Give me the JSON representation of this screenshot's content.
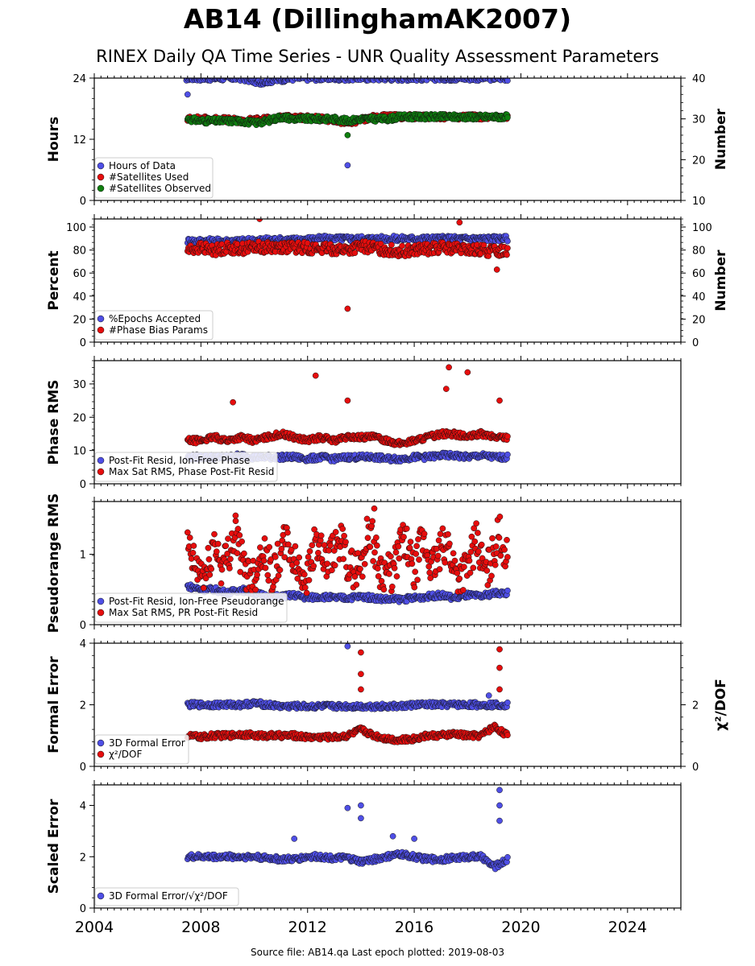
{
  "title": "AB14 (DillinghamAK2007)",
  "subtitle": "RINEX Daily QA Time Series - UNR Quality Assessment Parameters",
  "footer": "Source file: AB14.qa Last epoch plotted: 2019-08-03",
  "colors": {
    "blue": "#4f4fe6",
    "red": "#e60d0d",
    "green": "#0f7f0f",
    "edge": "#111111"
  },
  "chart_data": [
    {
      "type": "scatter",
      "ylabel": "Hours",
      "y2label": "Number",
      "xlim": [
        2004,
        2026
      ],
      "ylim": [
        0,
        24
      ],
      "y2lim": [
        10,
        40
      ],
      "yticks": [
        "0",
        "12",
        "24"
      ],
      "y2ticks": [
        "10",
        "20",
        "30",
        "40"
      ],
      "legend": "lower-left",
      "series": [
        {
          "name": "Hours of Data",
          "color": "blue",
          "axis": "left",
          "x": [
            2007.4,
            2007.6,
            2008.5,
            2009.5,
            2010.2,
            2010.6,
            2011.5,
            2012.8,
            2013.5,
            2014.5,
            2015.5,
            2016.5,
            2017.5,
            2018.5,
            2019.5
          ],
          "y": [
            24,
            24,
            24,
            24,
            23.2,
            23.5,
            24,
            24,
            24,
            24,
            24,
            24,
            24,
            24,
            24
          ],
          "outliers": [
            [
              2007.5,
              20.8
            ],
            [
              2013.5,
              6.9
            ]
          ]
        },
        {
          "name": "#Satellites Used",
          "color": "red",
          "axis": "right",
          "x": [
            2007.5,
            2008.5,
            2009.5,
            2010.5,
            2011.5,
            2012.5,
            2013.5,
            2014.5,
            2015.5,
            2016.5,
            2017.5,
            2018.5,
            2019.5
          ],
          "y": [
            30,
            30,
            29.5,
            30,
            30.5,
            30,
            29,
            30.5,
            30.5,
            30.5,
            30.5,
            30.5,
            30.5
          ]
        },
        {
          "name": "#Satellites Observed",
          "color": "green",
          "axis": "right",
          "x": [
            2007.5,
            2008.0,
            2008.5,
            2009.0,
            2009.5,
            2010.0,
            2010.5,
            2011.0,
            2011.5,
            2012.0,
            2012.5,
            2013.0,
            2013.5,
            2014.0,
            2014.5,
            2015.0,
            2015.5,
            2016.0,
            2016.5,
            2017.0,
            2017.5,
            2018.0,
            2018.5,
            2019.0,
            2019.5
          ],
          "y": [
            30,
            29.5,
            29.5,
            29.5,
            29.5,
            29,
            29.5,
            30.5,
            30,
            30,
            30,
            30,
            29.5,
            30,
            30,
            30,
            30.5,
            30.5,
            30.5,
            30.5,
            30.5,
            30.5,
            30.5,
            30.5,
            30.5
          ],
          "outliers": [
            [
              2013.5,
              26
            ]
          ]
        }
      ]
    },
    {
      "type": "scatter",
      "ylabel": "Percent",
      "y2label": "Number",
      "xlim": [
        2004,
        2026
      ],
      "ylim": [
        0,
        107
      ],
      "y2lim": [
        0,
        107
      ],
      "yticks": [
        "0",
        "20",
        "40",
        "60",
        "80",
        "100"
      ],
      "y2ticks": [
        "0",
        "20",
        "40",
        "60",
        "80",
        "100"
      ],
      "legend": "lower-left",
      "series": [
        {
          "name": "%Epochs Accepted",
          "color": "blue",
          "axis": "left",
          "x": [
            2007.5,
            2008.5,
            2009.5,
            2010.5,
            2011.5,
            2012.5,
            2013.5,
            2014.5,
            2015.5,
            2016.5,
            2017.5,
            2018.5,
            2019.5
          ],
          "y": [
            88,
            88,
            88,
            89,
            89,
            90,
            90,
            90,
            90,
            90,
            90,
            90,
            90
          ]
        },
        {
          "name": "#Phase Bias Params",
          "color": "red",
          "axis": "right",
          "x": [
            2007.5,
            2008.0,
            2008.5,
            2009.0,
            2009.5,
            2010.0,
            2010.5,
            2011.0,
            2011.5,
            2012.0,
            2012.5,
            2013.0,
            2013.5,
            2014.0,
            2014.5,
            2015.0,
            2015.5,
            2016.0,
            2016.5,
            2017.0,
            2017.5,
            2018.0,
            2018.5,
            2019.0,
            2019.5
          ],
          "y": [
            80,
            82,
            80,
            82,
            81,
            83,
            82,
            83,
            82,
            82,
            81,
            81,
            80,
            83,
            82,
            80,
            79,
            80,
            81,
            82,
            81,
            80,
            80,
            79,
            80
          ],
          "outliers": [
            [
              2010.2,
              107
            ],
            [
              2013.5,
              29
            ],
            [
              2017.7,
              104
            ],
            [
              2019.1,
              63
            ]
          ]
        }
      ]
    },
    {
      "type": "scatter",
      "ylabel": "Phase RMS",
      "xlim": [
        2004,
        2026
      ],
      "ylim": [
        0,
        37
      ],
      "yticks": [
        "0",
        "10",
        "20",
        "30"
      ],
      "legend": "lower-left",
      "series": [
        {
          "name": "Post-Fit Resid, Ion-Free Phase",
          "color": "blue",
          "axis": "left",
          "x": [
            2007.5,
            2008.0,
            2008.5,
            2009.0,
            2009.5,
            2010.0,
            2010.5,
            2011.0,
            2011.5,
            2012.0,
            2012.5,
            2013.0,
            2013.5,
            2014.0,
            2014.5,
            2015.0,
            2015.5,
            2016.0,
            2016.5,
            2017.0,
            2017.5,
            2018.0,
            2018.5,
            2019.0,
            2019.5
          ],
          "y": [
            8,
            8,
            8,
            8,
            8.5,
            8,
            8,
            8,
            8,
            7.5,
            8,
            7.5,
            8,
            8,
            8,
            7.5,
            7.5,
            8,
            8,
            8.5,
            8.5,
            8,
            8.5,
            8,
            8
          ]
        },
        {
          "name": "Max Sat RMS, Phase Post-Fit Resid",
          "color": "red",
          "axis": "left",
          "x": [
            2007.5,
            2008.0,
            2008.5,
            2009.0,
            2009.5,
            2010.0,
            2010.5,
            2011.0,
            2011.5,
            2012.0,
            2012.5,
            2013.0,
            2013.5,
            2014.0,
            2014.5,
            2015.0,
            2015.5,
            2016.0,
            2016.5,
            2017.0,
            2017.5,
            2018.0,
            2018.5,
            2019.0,
            2019.5
          ],
          "y": [
            13,
            13,
            14,
            13,
            14,
            13,
            14,
            15,
            14,
            13,
            14,
            13,
            14,
            14,
            14,
            13,
            12,
            13,
            14,
            15,
            15,
            14,
            15,
            14,
            14
          ],
          "outliers": [
            [
              2009.2,
              24.5
            ],
            [
              2012.3,
              32.5
            ],
            [
              2013.5,
              25
            ],
            [
              2017.3,
              35
            ],
            [
              2017.2,
              28.5
            ],
            [
              2018.0,
              33.5
            ],
            [
              2019.2,
              25
            ]
          ]
        }
      ]
    },
    {
      "type": "scatter",
      "ylabel": "Pseudorange RMS",
      "xlim": [
        2004,
        2026
      ],
      "ylim": [
        0,
        1.75
      ],
      "yticks": [
        "0",
        "1"
      ],
      "legend": "lower-left",
      "series": [
        {
          "name": "Post-Fit Resid, Ion-Free Pseudorange",
          "color": "blue",
          "axis": "left",
          "x": [
            2007.5,
            2008.0,
            2008.5,
            2009.0,
            2009.5,
            2010.0,
            2010.5,
            2011.0,
            2011.5,
            2012.0,
            2012.5,
            2013.0,
            2013.5,
            2014.0,
            2014.5,
            2015.0,
            2015.5,
            2016.0,
            2016.5,
            2017.0,
            2017.5,
            2018.0,
            2018.5,
            2019.0,
            2019.5
          ],
          "y": [
            0.55,
            0.5,
            0.5,
            0.45,
            0.5,
            0.45,
            0.4,
            0.4,
            0.42,
            0.38,
            0.4,
            0.38,
            0.38,
            0.4,
            0.38,
            0.36,
            0.36,
            0.38,
            0.4,
            0.42,
            0.38,
            0.42,
            0.4,
            0.45,
            0.45
          ]
        },
        {
          "name": "Max Sat RMS, PR Post-Fit Resid",
          "color": "red",
          "axis": "left",
          "x": [
            2007.5,
            2007.8,
            2008.2,
            2008.5,
            2008.8,
            2009.3,
            2009.6,
            2010.0,
            2010.3,
            2010.7,
            2011.2,
            2011.6,
            2012.0,
            2012.3,
            2012.7,
            2013.2,
            2013.6,
            2014.0,
            2014.3,
            2014.7,
            2015.2,
            2015.6,
            2016.0,
            2016.3,
            2016.7,
            2017.2,
            2017.6,
            2018.0,
            2018.3,
            2018.7,
            2019.2,
            2019.5
          ],
          "y": [
            1.1,
            0.8,
            0.7,
            1.2,
            0.8,
            1.3,
            0.8,
            0.7,
            1.1,
            0.7,
            1.2,
            0.8,
            0.7,
            1.2,
            0.8,
            1.2,
            0.8,
            0.8,
            1.4,
            0.8,
            0.7,
            1.3,
            0.7,
            1.2,
            0.8,
            1.2,
            0.7,
            0.8,
            1.2,
            0.7,
            1.3,
            0.9
          ],
          "outliers": [
            [
              2009.3,
              1.55
            ],
            [
              2014.5,
              1.65
            ]
          ]
        }
      ]
    },
    {
      "type": "scatter",
      "ylabel": "Formal Error",
      "y2label": "χ²/DOF",
      "xlim": [
        2004,
        2026
      ],
      "ylim": [
        0,
        4
      ],
      "y2lim": [
        0,
        4
      ],
      "yticks": [
        "0",
        "2",
        "4"
      ],
      "y2ticks": [
        "0",
        "2"
      ],
      "legend": "lower-left",
      "series": [
        {
          "name": "3D Formal Error",
          "color": "blue",
          "axis": "left",
          "x": [
            2007.5,
            2008.0,
            2008.5,
            2009.0,
            2009.5,
            2010.0,
            2010.5,
            2011.0,
            2011.5,
            2012.0,
            2012.5,
            2013.0,
            2013.5,
            2014.0,
            2014.5,
            2015.0,
            2015.5,
            2016.0,
            2016.5,
            2017.0,
            2017.5,
            2018.0,
            2018.5,
            2019.0,
            2019.5
          ],
          "y": [
            2.0,
            2.0,
            2.0,
            2.0,
            2.0,
            2.05,
            2.0,
            1.95,
            1.95,
            1.95,
            1.95,
            1.95,
            1.95,
            1.95,
            1.95,
            1.95,
            1.95,
            2.0,
            2.0,
            2.0,
            2.0,
            2.0,
            2.0,
            2.0,
            2.0
          ],
          "outliers": [
            [
              2013.5,
              3.9
            ],
            [
              2018.8,
              2.3
            ]
          ]
        },
        {
          "name": "χ²/DOF",
          "color": "red",
          "axis": "right",
          "x": [
            2007.5,
            2008.0,
            2008.5,
            2009.0,
            2009.5,
            2010.0,
            2010.5,
            2011.0,
            2011.5,
            2012.0,
            2012.5,
            2013.0,
            2013.5,
            2014.0,
            2014.5,
            2015.0,
            2015.5,
            2016.0,
            2016.5,
            2017.0,
            2017.5,
            2018.0,
            2018.5,
            2019.0,
            2019.5
          ],
          "y": [
            1.0,
            0.95,
            1.0,
            1.0,
            1.05,
            1.0,
            1.0,
            1.0,
            1.0,
            0.95,
            0.95,
            0.95,
            1.0,
            1.2,
            1.0,
            0.9,
            0.85,
            0.9,
            1.0,
            1.0,
            1.05,
            1.0,
            1.0,
            1.3,
            1.0
          ],
          "outliers": [
            [
              2014.0,
              3.7
            ],
            [
              2014.0,
              3.0
            ],
            [
              2014.0,
              2.5
            ],
            [
              2019.2,
              3.8
            ],
            [
              2019.2,
              3.2
            ],
            [
              2019.2,
              2.5
            ]
          ]
        }
      ]
    },
    {
      "type": "scatter",
      "ylabel": "Scaled Error",
      "xlabel": "",
      "xlim": [
        2004,
        2026
      ],
      "ylim": [
        0,
        4.8
      ],
      "yticks": [
        "0",
        "2",
        "4"
      ],
      "xticks": [
        "2004",
        "2008",
        "2012",
        "2016",
        "2020",
        "2024"
      ],
      "legend": "lower-left",
      "series": [
        {
          "name": "3D Formal Error/√χ²/DOF",
          "color": "blue",
          "axis": "left",
          "x": [
            2007.5,
            2008.0,
            2008.5,
            2009.0,
            2009.5,
            2010.0,
            2010.5,
            2011.0,
            2011.5,
            2012.0,
            2012.5,
            2013.0,
            2013.5,
            2014.0,
            2014.5,
            2015.0,
            2015.5,
            2016.0,
            2016.5,
            2017.0,
            2017.5,
            2018.0,
            2018.5,
            2019.0,
            2019.5
          ],
          "y": [
            2.0,
            2.0,
            2.0,
            2.0,
            2.0,
            2.0,
            1.95,
            1.9,
            1.9,
            2.0,
            2.0,
            1.95,
            1.95,
            1.8,
            1.9,
            2.0,
            2.1,
            2.0,
            1.9,
            1.9,
            1.95,
            2.0,
            2.0,
            1.6,
            1.9
          ],
          "outliers": [
            [
              2013.5,
              3.9
            ],
            [
              2014.0,
              4.0
            ],
            [
              2014.0,
              3.5
            ],
            [
              2019.2,
              4.6
            ],
            [
              2019.2,
              4.0
            ],
            [
              2019.2,
              3.4
            ],
            [
              2015.2,
              2.8
            ],
            [
              2016.0,
              2.7
            ],
            [
              2011.5,
              2.7
            ]
          ]
        }
      ]
    }
  ]
}
